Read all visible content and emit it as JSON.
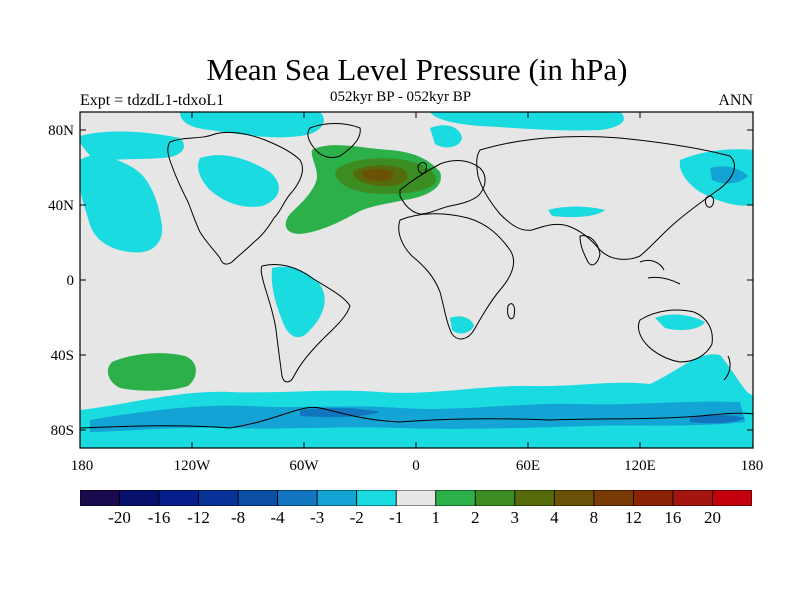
{
  "header": {
    "title": "Mean Sea Level Pressure (in hPa)",
    "left_label": "Expt = tdzdL1-tdxoL1",
    "center_label": "052kyr BP - 052kyr BP",
    "right_label": "ANN"
  },
  "map": {
    "projection": "cylindrical-equidistant",
    "lon_range": [
      -180,
      180
    ],
    "lat_range": [
      -90,
      90
    ],
    "x_ticks": [
      "180",
      "120W",
      "60W",
      "0",
      "60E",
      "120E",
      "180"
    ],
    "y_ticks": [
      "80N",
      "40N",
      "0",
      "40S",
      "80S"
    ]
  },
  "colorbar": {
    "labels": [
      "-20",
      "-16",
      "-12",
      "-8",
      "-4",
      "-3",
      "-2",
      "-1",
      "1",
      "2",
      "3",
      "4",
      "8",
      "12",
      "16",
      "20"
    ],
    "colors": [
      "#1a0a4d",
      "#08106e",
      "#061e8a",
      "#0a3399",
      "#0b4ea6",
      "#1275bf",
      "#13a3d4",
      "#19dbe0",
      "#e6e6e6",
      "#2cb04a",
      "#3b8d22",
      "#566b0c",
      "#6b5208",
      "#7a3a05",
      "#8c2208",
      "#a5150f",
      "#c4000f"
    ]
  },
  "colors": {
    "background": "#e6e6e6",
    "neg_1_2": "#19dbe0",
    "neg_2_3": "#13a3d4",
    "neg_3_4": "#1275bf",
    "pos_1_2": "#2cb04a",
    "pos_2_3": "#3b8d22",
    "pos_3_4": "#566b0c",
    "pos_4_8": "#6b5208"
  }
}
